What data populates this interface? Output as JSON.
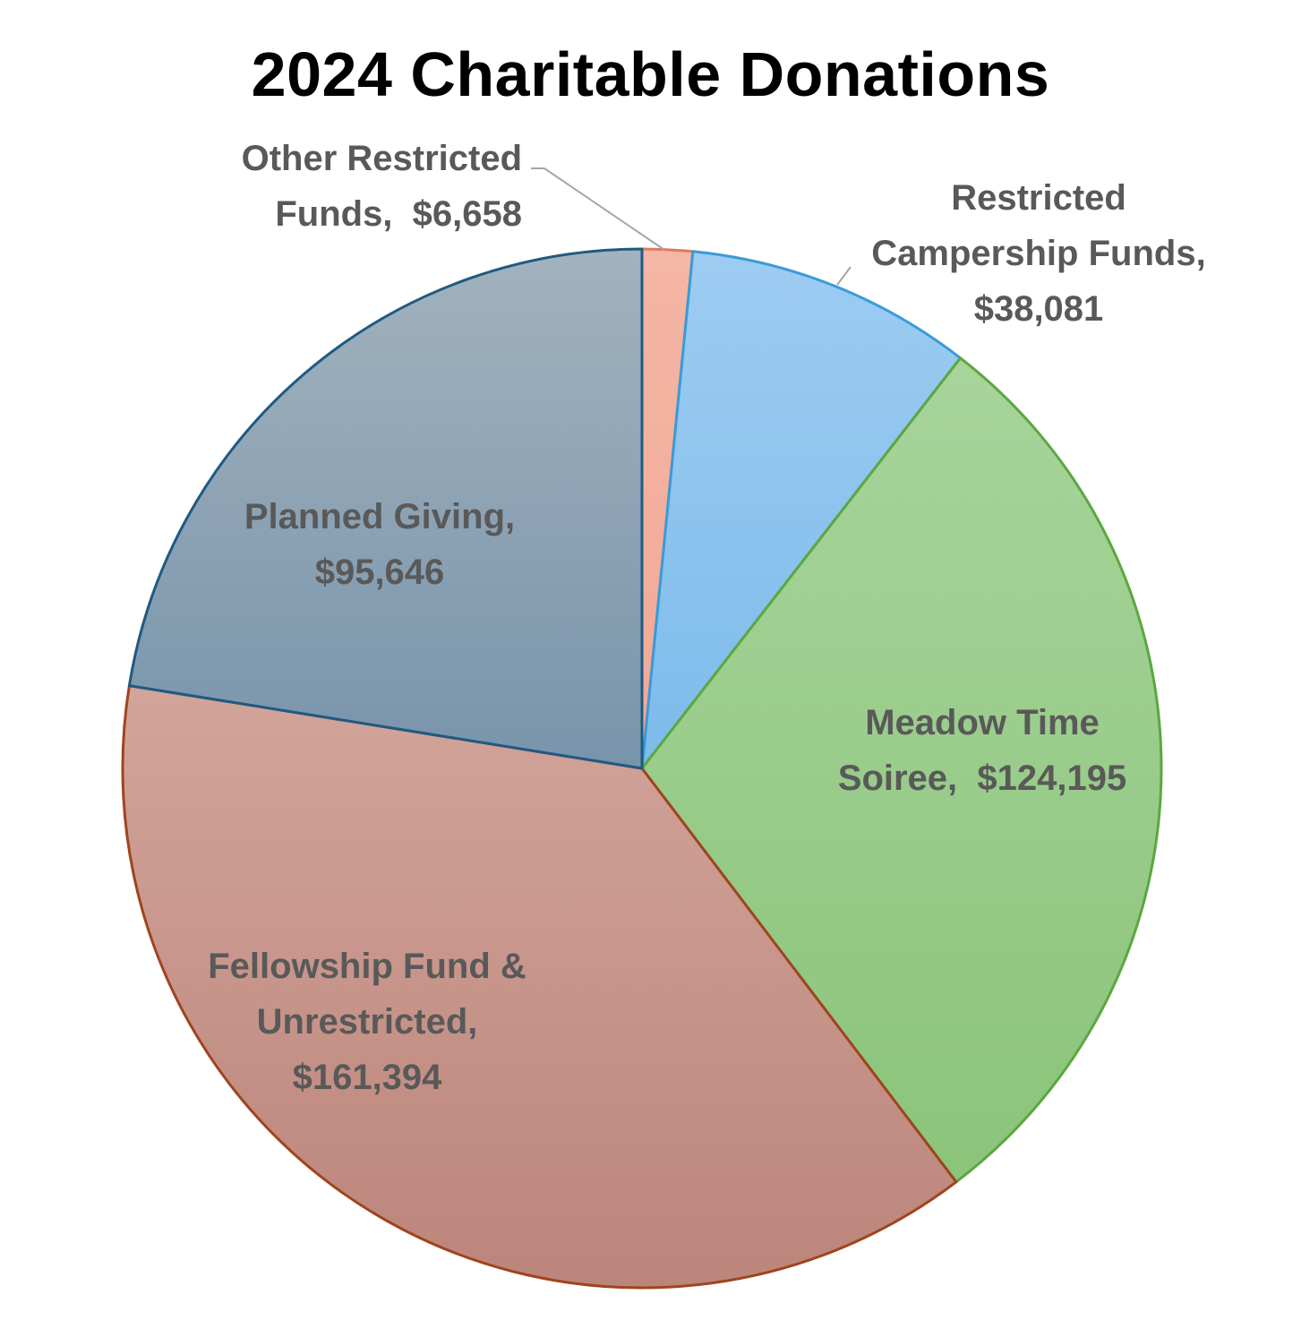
{
  "chart_data": {
    "type": "pie",
    "title": "2024 Charitable Donations",
    "start_angle_deg": 0,
    "direction": "clockwise",
    "slices": [
      {
        "label": "Other Restricted Funds",
        "label_lines": [
          "Other Restricted",
          "Funds,  $6,658"
        ],
        "value": 6658,
        "display_value": "$6,658",
        "color_top": "#f4b6a6",
        "color_bottom": "#f2a894",
        "stroke": "#e07a5f",
        "label_position": "outside-leader"
      },
      {
        "label": "Restricted Campership Funds",
        "label_lines": [
          "Restricted",
          "Campership Funds,",
          "$38,081"
        ],
        "value": 38081,
        "display_value": "$38,081",
        "color_top": "#9dccf2",
        "color_bottom": "#7dbbea",
        "stroke": "#3a9bd8",
        "label_position": "outside-leader"
      },
      {
        "label": "Meadow Time Soiree",
        "label_lines": [
          "Meadow Time",
          "Soiree,  $124,195"
        ],
        "value": 124195,
        "display_value": "$124,195",
        "color_top": "#a8d49b",
        "color_bottom": "#8bc47a",
        "stroke": "#5aa83f",
        "label_position": "inside"
      },
      {
        "label": "Fellowship Fund & Unrestricted",
        "label_lines": [
          "Fellowship Fund &",
          "Unrestricted,",
          "$161,394"
        ],
        "value": 161394,
        "display_value": "$161,394",
        "color_top": "#d2a49a",
        "color_bottom": "#bc857b",
        "stroke": "#a0441e",
        "label_position": "inside"
      },
      {
        "label": "Planned Giving",
        "label_lines": [
          "Planned Giving,",
          "$95,646"
        ],
        "value": 95646,
        "display_value": "$95,646",
        "color_top": "#a2b2be",
        "color_bottom": "#7894ab",
        "stroke": "#1f5a82",
        "label_position": "inside"
      }
    ]
  }
}
